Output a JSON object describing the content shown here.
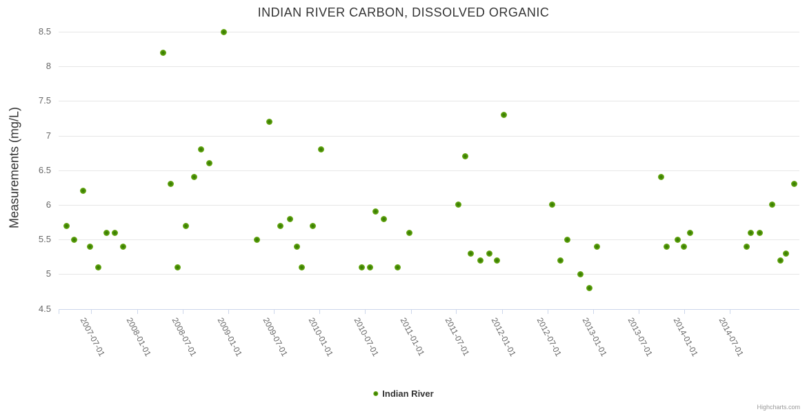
{
  "chart": {
    "title": "INDIAN RIVER CARBON, DISSOLVED ORGANIC",
    "legend": {
      "series_label": "Indian River"
    },
    "credits": "Highcharts.com",
    "y_axis": {
      "title": "Measurements (mg/L)",
      "tick_labels": [
        "4.5",
        "5",
        "5.5",
        "6",
        "6.5",
        "7",
        "7.5",
        "8",
        "8.5"
      ]
    },
    "x_axis": {
      "tick_labels": [
        "2007-07-01",
        "2008-01-01",
        "2008-07-01",
        "2009-01-01",
        "2009-07-01",
        "2010-01-01",
        "2010-07-01",
        "2011-01-01",
        "2011-07-01",
        "2012-01-01",
        "2012-07-01",
        "2013-01-01",
        "2013-07-01",
        "2014-01-01",
        "2014-07-01"
      ]
    },
    "colors": {
      "marker_green_outer": "#79b821",
      "marker_green_inner": "#2e7500",
      "grid_line": "#e6e6e6",
      "axis_line": "#ccd6eb",
      "label_text": "#666666",
      "title_text": "#333333",
      "credits_text": "#999999"
    }
  },
  "chart_data": {
    "type": "scatter",
    "title": "INDIAN RIVER CARBON, DISSOLVED ORGANIC",
    "xlabel": "",
    "ylabel": "Measurements (mg/L)",
    "ylim": [
      4.5,
      8.5
    ],
    "y_tick_step": 0.5,
    "x_tick_labels": [
      "2007-07-01",
      "2008-01-01",
      "2008-07-01",
      "2009-01-01",
      "2009-07-01",
      "2010-01-01",
      "2010-07-01",
      "2011-01-01",
      "2011-07-01",
      "2012-01-01",
      "2012-07-01",
      "2013-01-01",
      "2013-07-01",
      "2014-01-01",
      "2014-07-01"
    ],
    "grid": true,
    "legend_position": "bottom-center",
    "series": [
      {
        "name": "Indian River",
        "points": [
          {
            "date": "2007-03-24",
            "value": 5.7
          },
          {
            "date": "2007-04-25",
            "value": 5.5
          },
          {
            "date": "2007-05-31",
            "value": 6.2
          },
          {
            "date": "2007-06-28",
            "value": 5.4
          },
          {
            "date": "2007-07-29",
            "value": 5.1
          },
          {
            "date": "2007-09-02",
            "value": 5.6
          },
          {
            "date": "2007-10-05",
            "value": 5.6
          },
          {
            "date": "2007-11-05",
            "value": 5.4
          },
          {
            "date": "2008-04-15",
            "value": 8.2
          },
          {
            "date": "2008-05-16",
            "value": 6.3
          },
          {
            "date": "2008-06-12",
            "value": 5.1
          },
          {
            "date": "2008-07-14",
            "value": 5.7
          },
          {
            "date": "2008-08-18",
            "value": 6.4
          },
          {
            "date": "2008-09-14",
            "value": 6.8
          },
          {
            "date": "2008-10-17",
            "value": 6.6
          },
          {
            "date": "2008-12-13",
            "value": 8.5
          },
          {
            "date": "2009-04-25",
            "value": 5.5
          },
          {
            "date": "2009-06-15",
            "value": 7.2
          },
          {
            "date": "2009-07-28",
            "value": 5.7
          },
          {
            "date": "2009-09-05",
            "value": 5.8
          },
          {
            "date": "2009-10-02",
            "value": 5.4
          },
          {
            "date": "2009-10-22",
            "value": 5.1
          },
          {
            "date": "2009-12-04",
            "value": 5.7
          },
          {
            "date": "2010-01-06",
            "value": 6.8
          },
          {
            "date": "2010-06-18",
            "value": 5.1
          },
          {
            "date": "2010-07-22",
            "value": 5.1
          },
          {
            "date": "2010-08-13",
            "value": 5.9
          },
          {
            "date": "2010-09-14",
            "value": 5.8
          },
          {
            "date": "2010-11-10",
            "value": 5.1
          },
          {
            "date": "2010-12-26",
            "value": 5.6
          },
          {
            "date": "2011-07-09",
            "value": 6.0
          },
          {
            "date": "2011-08-07",
            "value": 6.7
          },
          {
            "date": "2011-08-30",
            "value": 5.3
          },
          {
            "date": "2011-10-07",
            "value": 5.2
          },
          {
            "date": "2011-11-12",
            "value": 5.3
          },
          {
            "date": "2011-12-12",
            "value": 5.2
          },
          {
            "date": "2012-01-09",
            "value": 7.3
          },
          {
            "date": "2012-07-19",
            "value": 6.0
          },
          {
            "date": "2012-08-21",
            "value": 5.2
          },
          {
            "date": "2012-09-19",
            "value": 5.5
          },
          {
            "date": "2012-11-09",
            "value": 5.0
          },
          {
            "date": "2012-12-17",
            "value": 4.8
          },
          {
            "date": "2013-01-15",
            "value": 5.4
          },
          {
            "date": "2013-09-28",
            "value": 6.4
          },
          {
            "date": "2013-10-21",
            "value": 5.4
          },
          {
            "date": "2013-12-04",
            "value": 5.5
          },
          {
            "date": "2013-12-29",
            "value": 5.4
          },
          {
            "date": "2014-01-23",
            "value": 5.6
          },
          {
            "date": "2014-09-08",
            "value": 5.4
          },
          {
            "date": "2014-09-24",
            "value": 5.6
          },
          {
            "date": "2014-10-29",
            "value": 5.6
          },
          {
            "date": "2014-12-17",
            "value": 6.0
          },
          {
            "date": "2015-01-20",
            "value": 5.2
          },
          {
            "date": "2015-02-10",
            "value": 5.3
          },
          {
            "date": "2015-03-16",
            "value": 6.3
          }
        ]
      }
    ]
  }
}
